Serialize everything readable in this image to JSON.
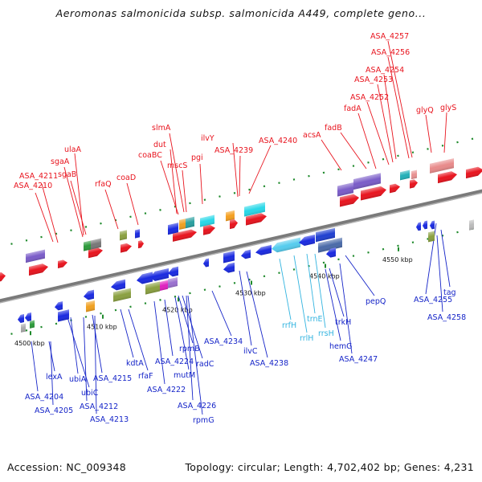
{
  "title": "Aeromonas salmonicida subsp. salmonicida A449, complete geno...",
  "accession": "Accession: NC_009348",
  "topology": "Topology: circular; Length: 4,702,402 bp; Genes: 4,231",
  "colors": {
    "forward_label": "#e8141e",
    "reverse_label": "#1524c8",
    "rna_label": "#33b4e0",
    "backbone": "#808080"
  },
  "ticks": [
    "4500 kbp",
    "4510 kbp",
    "4520 kbp",
    "4530 kbp",
    "4540 kbp",
    "4550 kbp"
  ],
  "forward_labels": [
    "ASA_4210",
    "ASA_4211",
    "sgaA",
    "ulaA",
    "sgaB",
    "rfaQ",
    "coaD",
    "coaBC",
    "slmA",
    "dut",
    "mscS",
    "pgi",
    "ilvY",
    "ASA_4239",
    "ASA_4240",
    "acsA",
    "fadB",
    "fadA",
    "ASA_4252",
    "ASA_4253",
    "ASA_4254",
    "ASA_4256",
    "ASA_4257",
    "glyQ",
    "glyS"
  ],
  "reverse_labels": [
    "ASA_4204",
    "lexA",
    "ASA_4205",
    "ubiC",
    "ubiA",
    "ASA_4212",
    "ASA_4213",
    "ASA_4215",
    "kdtA",
    "rfaF",
    "ASA_4222",
    "ASA_4224",
    "rpmB",
    "mutM",
    "radC",
    "ASA_4226",
    "rpmG",
    "ASA_4234",
    "ilvC",
    "ASA_4238",
    "hemG",
    "trkH",
    "ASA_4247",
    "pepQ",
    "ASA_4255",
    "tag",
    "ASA_4258"
  ],
  "rna_labels": [
    "rrfH",
    "rrlH",
    "trnE",
    "rrsH"
  ]
}
